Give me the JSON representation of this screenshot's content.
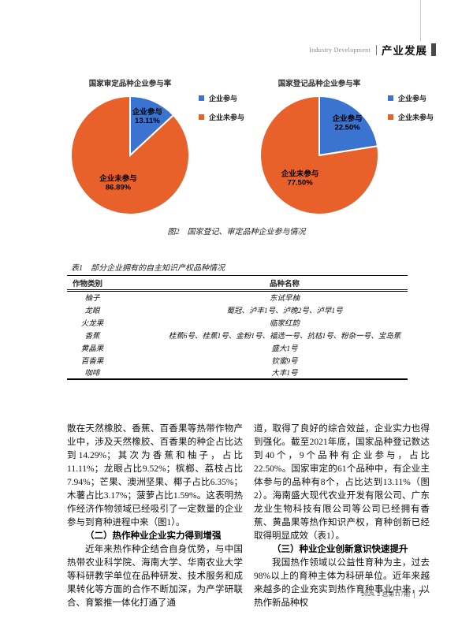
{
  "header": {
    "en": "Industry Development",
    "zh": "产业发展"
  },
  "footer": {
    "issue": "2024. 2 总第117期",
    "page_no": "7"
  },
  "colors": {
    "participate": "#3b73d1",
    "not_participate": "#e8612a"
  },
  "chart_data": [
    {
      "type": "pie",
      "title": "国家审定品种企业参与率",
      "labels": [
        "企业参与",
        "企业未参与"
      ],
      "values": [
        13.11,
        86.89
      ],
      "colors": [
        "#3b73d1",
        "#e8612a"
      ],
      "data_labels": [
        "企业参与 13.11%",
        "企业未参与 86.89%"
      ],
      "legend_position": "right",
      "legend": [
        "企业参与",
        "企业未参与"
      ]
    },
    {
      "type": "pie",
      "title": "国家登记品种企业参与率",
      "labels": [
        "企业参与",
        "企业未参与"
      ],
      "values": [
        22.5,
        77.5
      ],
      "colors": [
        "#3b73d1",
        "#e8612a"
      ],
      "data_labels": [
        "企业参与 22.50%",
        "企业未参与 77.50%"
      ],
      "legend_position": "right",
      "legend": [
        "企业参与",
        "企业未参与"
      ]
    }
  ],
  "figure_caption": "图2　国家登记、审定品种企业参与情况",
  "table": {
    "title": "表1　部分企业拥有的自主知识产权品种情况",
    "columns": [
      "作物类别",
      "品种名称"
    ],
    "rows": [
      [
        "柚子",
        "东试早柚"
      ],
      [
        "龙眼",
        "蜀冠、泸丰1号、泸晚2号、泸早1号"
      ],
      [
        "火龙果",
        "临家红韵"
      ],
      [
        "香蕉",
        "桂蕉6号、桂蕉1号、金粉1号、福选一号、抗枯1号、粉杂一号、宝岛蕉"
      ],
      [
        "黄晶果",
        "盛大1号"
      ],
      [
        "百香果",
        "钦蜜9号"
      ],
      [
        "咖啡",
        "大丰1号"
      ]
    ]
  },
  "body": {
    "left_column": [
      {
        "type": "p",
        "indent": false,
        "text": "散在天然橡胶、香蕉、百香果等热带作物产业中，涉及天然橡胶、百香果的种企占比达到14.29%；其次为香蕉和柚子，占比11.11%；龙眼占比9.52%；槟榔、荔枝占比7.94%；芒果、澳洲坚果、椰子占比6.35%；木薯占比3.17%；菠萝占比1.59%。这表明热作经济作物领域已经吸引了一定数量的企业参与到育种进程中来（图1）。"
      },
      {
        "type": "h",
        "text": "（二）热作种业企业实力得到增强"
      },
      {
        "type": "p",
        "indent": true,
        "text": "近年来热作种企结合自身优势，与中国热带农业科学院、海南大学、华南农业大学等科研教学单位在品种研发、技术服务和成果转化等方面的合作不断加深，为产学研联合、育繁推一体化打通了通"
      }
    ],
    "right_column": [
      {
        "type": "p",
        "indent": false,
        "text": "道，取得了良好的综合效益，企业实力也得到强化。截至2021年底，国家品种登记数达到40个，9个品种有企业参与，占比22.50%。国家审定的61个品种中，有企业主体参与的品种有8个，占比达到13.11%（图2）。海南盛大现代农业开发有限公司、广东龙业生物科技有限公司等公司已经拥有香蕉、黄晶果等热作知识产权，育种创新已经取得明显成效（表1）。"
      },
      {
        "type": "h",
        "text": "（三）种业企业创新意识快速提升"
      },
      {
        "type": "p",
        "indent": true,
        "text": "我国热作领域以公益性育种为主，过去98%以上的育种主体为科研单位。近年来越来越多的企业充实到热作育种事业中来，以热作新品种权"
      }
    ]
  }
}
